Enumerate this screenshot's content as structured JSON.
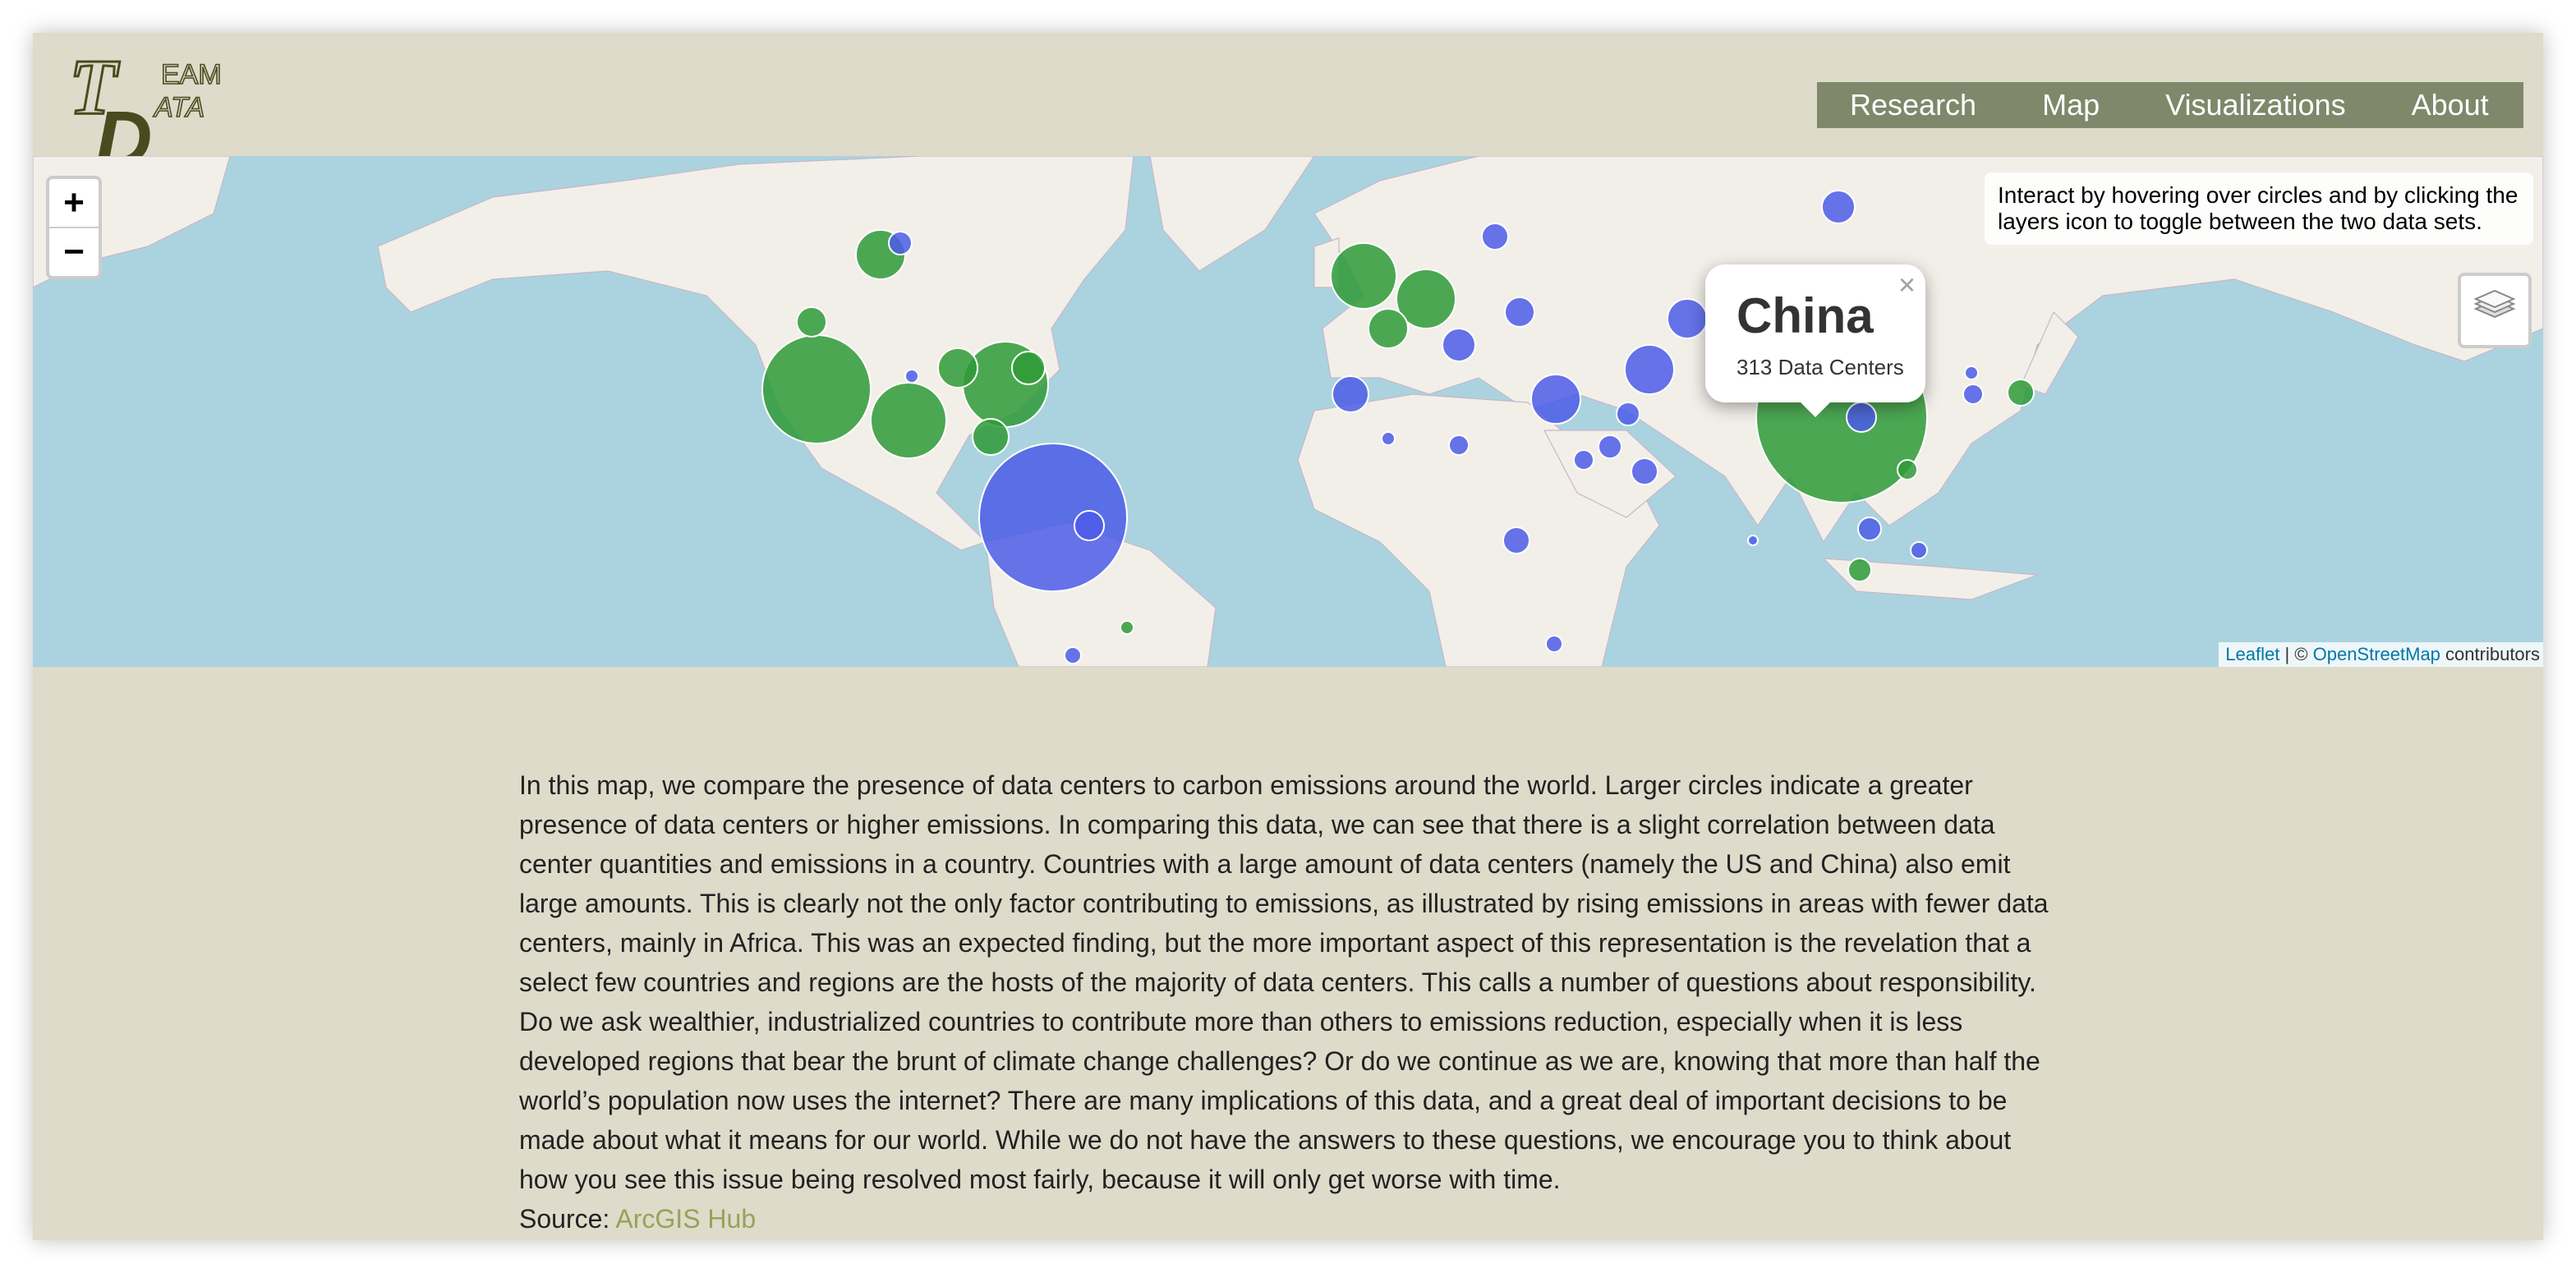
{
  "header": {
    "logo": {
      "t": "T",
      "eam": "EAM",
      "d": "D",
      "ata": "ATA"
    },
    "nav": [
      "Research",
      "Map",
      "Visualizations",
      "About"
    ]
  },
  "map": {
    "zoom_in": "+",
    "zoom_out": "−",
    "info": "Interact by hovering over circles and by clicking the layers icon to toggle between the two data sets.",
    "popup": {
      "title": "China",
      "text": "313 Data Centers",
      "close": "×"
    },
    "attribution": {
      "leaflet": "Leaflet",
      "separator": "| ©",
      "osm": "OpenStreetMap",
      "contributors": "contributors"
    }
  },
  "content": {
    "paragraph": "In this map, we compare the presence of data centers to carbon emissions around the world. Larger circles indicate a greater presence of data centers or higher emissions. In comparing this data, we can see that there is a slight correlation between data center quantities and emissions in a country. Countries with a large amount of data centers (namely the US and China) also emit large amounts. This is clearly not the only factor contributing to emissions, as illustrated by rising emissions in areas with fewer data centers, mainly in Africa. This was an expected finding, but the more important aspect of this representation is the revelation that a select few countries and regions are the hosts of the majority of data centers. This calls a number of questions about responsibility. Do we ask wealthier, industrialized countries to contribute more than others to emissions reduction, especially when it is less developed regions that bear the brunt of climate change challenges? Or do we continue as we are, knowing that more than half the world’s population now uses the internet? There are many implications of this data, and a great deal of important decisions to be made about what it means for our world. While we do not have the answers to these questions, we encourage you to think about how you see this issue being resolved most fairly, because it will only get worse with time.",
    "source_label": "Source:",
    "source_link": "ArcGIS Hub"
  }
}
